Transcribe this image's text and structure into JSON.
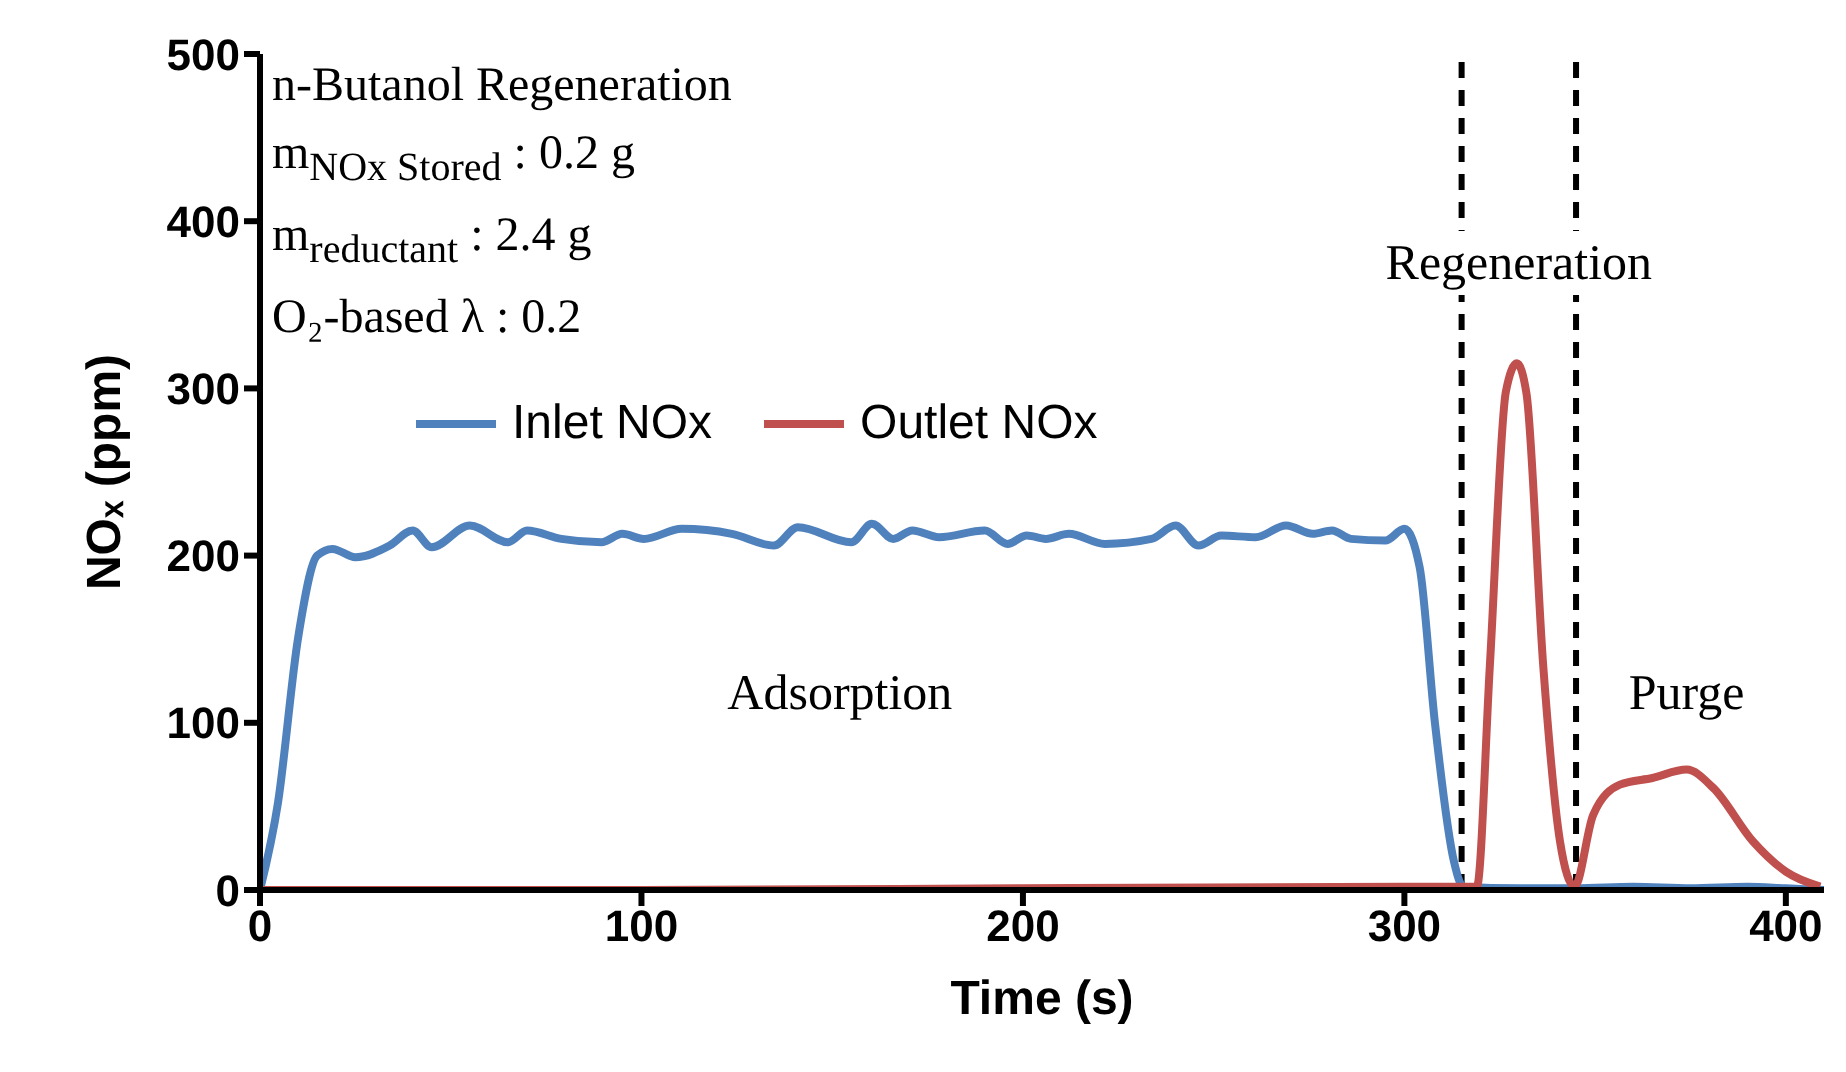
{
  "chart_data": {
    "type": "line",
    "xlabel": "Time (s)",
    "ylabel": "NOₓ (ppm)",
    "xlim": [
      0,
      410
    ],
    "xticks": [
      0,
      100,
      200,
      300,
      400
    ],
    "ylim": [
      0,
      500
    ],
    "yticks": [
      0,
      100,
      200,
      300,
      400,
      500
    ],
    "legend": "top",
    "marker": "none",
    "line_style": "solid",
    "series": [
      {
        "name": "Inlet NOx",
        "color": "#4f81bd",
        "x": [
          0,
          4.7,
          10,
          15,
          19,
          25,
          34,
          40,
          45,
          55,
          65,
          70,
          79,
          89.5,
          95,
          100.6,
          110.6,
          123.7,
          134.7,
          141,
          155,
          160.4,
          166,
          171,
          178,
          190,
          196,
          201,
          206,
          212,
          221.5,
          233.7,
          240,
          246,
          252,
          261,
          269,
          276,
          281,
          286,
          295,
          300,
          304,
          308,
          313,
          315.4,
          330,
          345,
          360,
          375,
          390,
          400,
          410
        ],
        "values": [
          0,
          52,
          151,
          200,
          204,
          199,
          206,
          215,
          205,
          218,
          208,
          215,
          210,
          208,
          213,
          210,
          216,
          213,
          206,
          217,
          208,
          219,
          210,
          215,
          211,
          215,
          207,
          212,
          210,
          213,
          207,
          210,
          218,
          206,
          212,
          211,
          218,
          213,
          215,
          210,
          209,
          216,
          193,
          100,
          17,
          2,
          1,
          1,
          2,
          1,
          2,
          1,
          0
        ]
      },
      {
        "name": "Outlet NOx",
        "color": "#c0504d",
        "x": [
          0,
          100,
          200,
          300,
          315,
          319,
          322.4,
          326.6,
          329.5,
          332,
          336.4,
          340.8,
          344.6,
          349.5,
          356.5,
          365,
          374,
          381,
          391.4,
          400,
          409
        ],
        "values": [
          0,
          0,
          1,
          2,
          2,
          2,
          134,
          298,
          315,
          297,
          134,
          29,
          2,
          45,
          63,
          67,
          72,
          61,
          29,
          11,
          2
        ]
      }
    ],
    "ref_lines": [
      {
        "axis": "x",
        "value": 315,
        "color": "#000000",
        "line_style": "dashed"
      },
      {
        "axis": "x",
        "value": 345,
        "color": "#000000",
        "line_style": "dashed"
      }
    ],
    "annotations": [
      "n-Butanol Regeneration",
      "m$_{NOx Stored}$ : 0.2 g",
      "m$_{reductant}$ : 2.4 g",
      "O₂-based λ : 0.2",
      "Regeneration",
      "Adsorption",
      "Purge"
    ]
  }
}
